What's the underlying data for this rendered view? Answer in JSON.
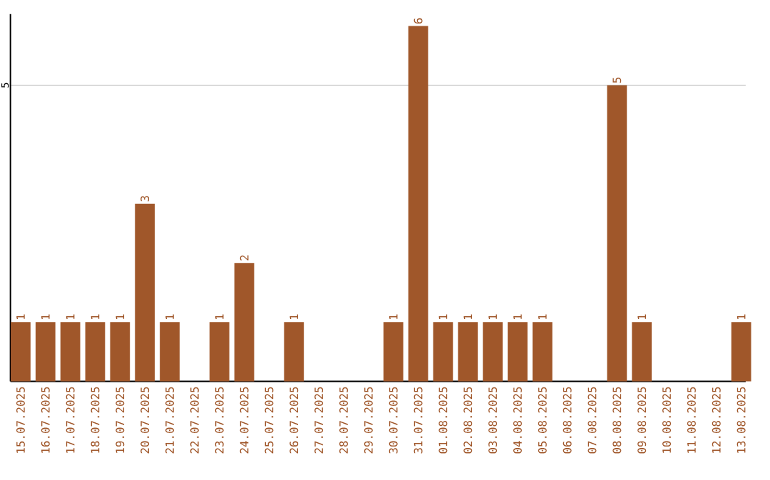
{
  "chart_data": {
    "type": "bar",
    "categories": [
      "15.07.2025",
      "16.07.2025",
      "17.07.2025",
      "18.07.2025",
      "19.07.2025",
      "20.07.2025",
      "21.07.2025",
      "22.07.2025",
      "23.07.2025",
      "24.07.2025",
      "25.07.2025",
      "26.07.2025",
      "27.07.2025",
      "28.07.2025",
      "29.07.2025",
      "30.07.2025",
      "31.07.2025",
      "01.08.2025",
      "02.08.2025",
      "03.08.2025",
      "04.08.2025",
      "05.08.2025",
      "06.08.2025",
      "07.08.2025",
      "08.08.2025",
      "09.08.2025",
      "10.08.2025",
      "11.08.2025",
      "12.08.2025",
      "13.08.2025"
    ],
    "values": [
      1,
      1,
      1,
      1,
      1,
      3,
      1,
      0,
      1,
      2,
      0,
      1,
      0,
      0,
      0,
      1,
      6,
      1,
      1,
      1,
      1,
      1,
      0,
      0,
      5,
      1,
      0,
      0,
      0,
      1
    ],
    "value_labels": [
      "1",
      "1",
      "1",
      "1",
      "1",
      "3",
      "1",
      null,
      "1",
      "2",
      null,
      "1",
      null,
      null,
      null,
      "1",
      "6",
      "1",
      "1",
      "1",
      "1",
      "1",
      null,
      null,
      "5",
      "1",
      null,
      null,
      null,
      "1"
    ],
    "color": "#a0572a",
    "ylim": [
      0,
      6.2
    ],
    "yticks": [
      5
    ],
    "grid": "y"
  }
}
